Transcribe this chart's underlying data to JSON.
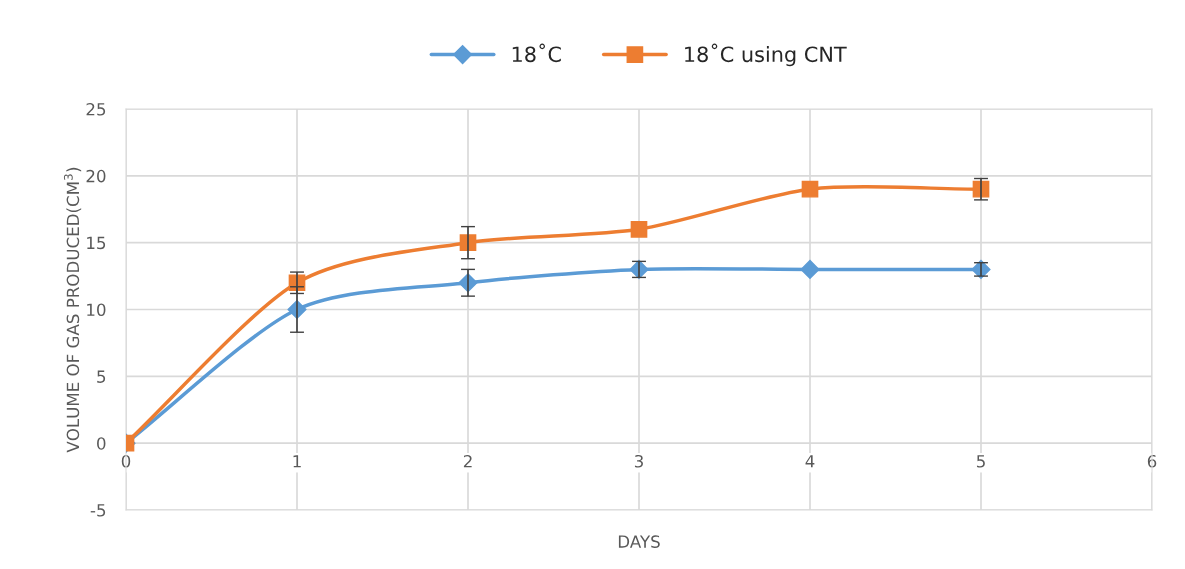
{
  "chart_data": {
    "type": "line",
    "xlabel": "DAYS",
    "ylabel": "VOLUME OF GAS PRODUCED(CM$^{3}$)",
    "x": [
      0,
      1,
      2,
      3,
      4,
      5
    ],
    "series": [
      {
        "name": "18˚C",
        "color": "#5b9bd5",
        "marker": "diamond",
        "values": [
          0,
          10,
          12,
          13,
          13,
          13
        ],
        "errors": [
          null,
          1.7,
          1,
          0.6,
          null,
          0.5
        ]
      },
      {
        "name": "18˚C using CNT",
        "color": "#ed7d31",
        "marker": "square",
        "values": [
          0,
          12,
          15,
          16,
          19,
          19
        ],
        "errors": [
          null,
          0.8,
          1.2,
          null,
          null,
          0.8
        ]
      }
    ],
    "xlim": [
      0,
      6
    ],
    "xticks": [
      0,
      1,
      2,
      3,
      4,
      5,
      6
    ],
    "ylim": [
      -5,
      25
    ],
    "yticks": [
      -5,
      0,
      5,
      10,
      15,
      20,
      25
    ],
    "grid": true,
    "legend": "top",
    "line_style": "solid"
  }
}
